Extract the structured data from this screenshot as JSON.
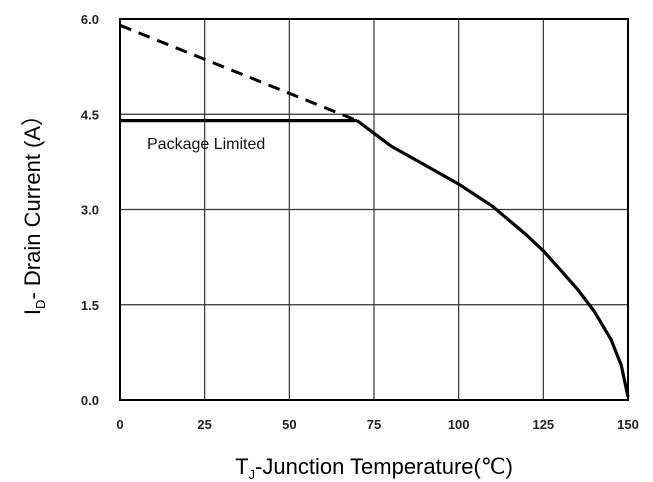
{
  "chart_data": {
    "type": "line",
    "xlabel": "Tⱼ-Junction Temperature(℃)",
    "ylabel": "Iᴅ- Drain Current (A）",
    "xlabel_parts": {
      "main": "T",
      "sub": "J",
      "rest": "-Junction Temperature(℃)"
    },
    "ylabel_parts": {
      "main": "I",
      "sub": "D",
      "rest": "- Drain Current (A）"
    },
    "xlim": [
      0,
      150
    ],
    "ylim": [
      0,
      6.0
    ],
    "x_ticks": [
      "0",
      "25",
      "50",
      "75",
      "100",
      "125",
      "150"
    ],
    "y_ticks": [
      "0.0",
      "1.5",
      "3.0",
      "4.5",
      "6.0"
    ],
    "grid": true,
    "annotation": "Package Limited",
    "series": [
      {
        "style": "dashed",
        "x": [
          0,
          70
        ],
        "y": [
          5.9,
          4.4
        ]
      },
      {
        "style": "solid",
        "x": [
          0,
          70
        ],
        "y": [
          4.4,
          4.4
        ]
      },
      {
        "style": "solid",
        "x": [
          70,
          80,
          90,
          100,
          110,
          120,
          125,
          130,
          135,
          140,
          145,
          148,
          150
        ],
        "y": [
          4.4,
          4.0,
          3.7,
          3.4,
          3.05,
          2.6,
          2.35,
          2.05,
          1.75,
          1.4,
          0.95,
          0.55,
          0.05
        ]
      }
    ]
  }
}
